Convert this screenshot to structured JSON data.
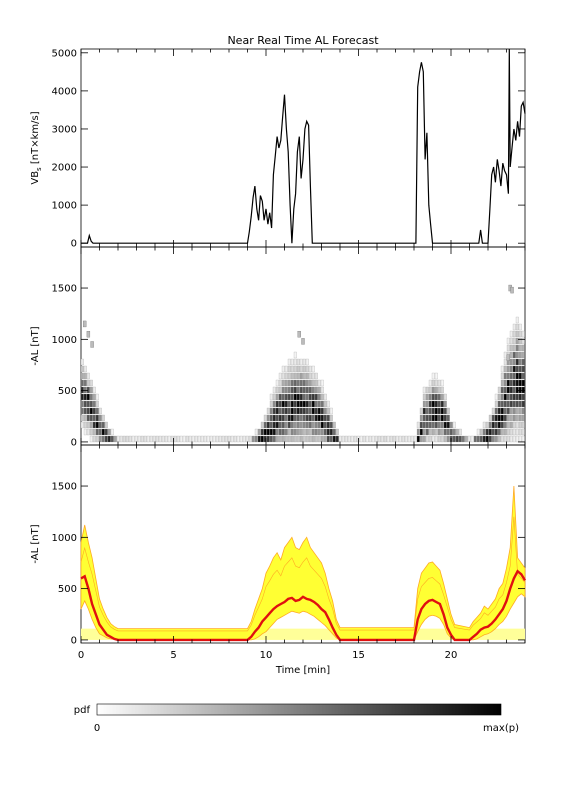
{
  "chart_data": [
    {
      "type": "line",
      "title": "Near Real Time AL Forecast",
      "ylabel_main": "VB",
      "ylabel_sub": "s",
      "ylabel_units": " [nT×km/s]",
      "ylim": [
        -100,
        5100
      ],
      "xlim": [
        0,
        24
      ],
      "yticks": [
        0,
        1000,
        2000,
        3000,
        4000,
        5000
      ],
      "x": [
        0,
        0.35,
        0.45,
        0.55,
        0.65,
        9.0,
        9.1,
        9.2,
        9.3,
        9.4,
        9.5,
        9.6,
        9.7,
        9.8,
        9.9,
        10.0,
        10.1,
        10.2,
        10.3,
        10.4,
        10.5,
        10.6,
        10.7,
        10.8,
        10.9,
        11.0,
        11.1,
        11.2,
        11.3,
        11.4,
        11.5,
        11.6,
        11.7,
        11.8,
        11.9,
        12.0,
        12.1,
        12.2,
        12.3,
        12.4,
        12.5,
        12.6,
        12.7,
        12.8,
        18.1,
        18.2,
        18.3,
        18.4,
        18.5,
        18.6,
        18.7,
        18.8,
        18.9,
        19.0,
        19.1,
        21.5,
        21.6,
        21.7,
        22.0,
        22.1,
        22.2,
        22.3,
        22.4,
        22.5,
        22.6,
        22.7,
        22.8,
        22.9,
        23.0,
        23.1,
        23.15,
        23.2,
        23.3,
        23.4,
        23.5,
        23.6,
        23.7,
        23.8,
        23.9,
        24.0
      ],
      "y": [
        0,
        0,
        200,
        50,
        0,
        0,
        300,
        700,
        1200,
        1500,
        900,
        600,
        1250,
        1100,
        600,
        900,
        500,
        800,
        400,
        1800,
        2300,
        2800,
        2500,
        2700,
        3300,
        3900,
        3000,
        2400,
        1000,
        0,
        900,
        1300,
        2400,
        2800,
        1700,
        2200,
        3000,
        3200,
        3100,
        1500,
        0,
        0,
        0,
        0,
        0,
        4100,
        4500,
        4750,
        4500,
        2200,
        2900,
        1000,
        500,
        0,
        0,
        0,
        350,
        0,
        0,
        900,
        1800,
        2000,
        1600,
        2200,
        1900,
        1500,
        2100,
        1900,
        1800,
        1300,
        5100,
        2000,
        2500,
        3000,
        2700,
        3200,
        2800,
        3600,
        3700,
        3400
      ]
    },
    {
      "type": "heatmap",
      "ylabel": "-AL [nT]",
      "ylim": [
        -30,
        1900
      ],
      "xlim": [
        0,
        24
      ],
      "yticks": [
        0,
        500,
        1000,
        1500
      ],
      "median_x": [
        0,
        0.5,
        1.0,
        1.5,
        2.0,
        9.0,
        9.5,
        10.0,
        10.5,
        11.0,
        11.5,
        12.0,
        12.5,
        13.0,
        13.5,
        14.0,
        18.0,
        18.5,
        19.0,
        19.5,
        20.0,
        21.0,
        21.5,
        22.0,
        22.5,
        23.0,
        23.5,
        24.0
      ],
      "median_y": [
        500,
        350,
        150,
        50,
        0,
        0,
        20,
        100,
        250,
        350,
        400,
        380,
        350,
        250,
        100,
        0,
        0,
        250,
        350,
        300,
        80,
        0,
        50,
        100,
        250,
        500,
        650,
        550
      ],
      "spread_y": [
        200,
        180,
        120,
        60,
        30,
        30,
        80,
        150,
        220,
        260,
        280,
        270,
        240,
        200,
        120,
        30,
        30,
        180,
        200,
        180,
        80,
        30,
        60,
        100,
        180,
        300,
        350,
        300
      ],
      "outliers": [
        [
          0.2,
          1150
        ],
        [
          0.4,
          1050
        ],
        [
          0.6,
          950
        ],
        [
          23.2,
          1500
        ],
        [
          23.3,
          1480
        ],
        [
          23.1,
          820
        ],
        [
          11.8,
          1050
        ],
        [
          12.0,
          980
        ]
      ],
      "colorbar": {
        "label": "pdf",
        "min_label": "0",
        "max_label": "max(p)"
      }
    },
    {
      "type": "area",
      "ylabel": "-AL [nT]",
      "xlabel": "Time [min]",
      "ylim": [
        -30,
        1900
      ],
      "xlim": [
        0,
        24
      ],
      "yticks": [
        0,
        500,
        1000,
        1500
      ],
      "xticks": [
        0,
        5,
        10,
        15,
        20
      ],
      "band_color": "#ffff33",
      "band_edge_color": "#ffaa22",
      "band_light_color": "#ffff99",
      "median_color": "#e01010",
      "x": [
        0,
        0.2,
        0.4,
        0.6,
        0.8,
        1.0,
        1.2,
        1.4,
        1.6,
        1.8,
        2.0,
        9.0,
        9.2,
        9.4,
        9.6,
        9.8,
        10.0,
        10.2,
        10.4,
        10.6,
        10.8,
        11.0,
        11.2,
        11.4,
        11.6,
        11.8,
        12.0,
        12.2,
        12.4,
        12.6,
        12.8,
        13.0,
        13.2,
        13.4,
        13.6,
        13.8,
        14.0,
        18.0,
        18.2,
        18.4,
        18.6,
        18.8,
        19.0,
        19.2,
        19.4,
        19.6,
        19.8,
        20.0,
        20.2,
        21.0,
        21.2,
        21.4,
        21.6,
        21.8,
        22.0,
        22.2,
        22.4,
        22.6,
        22.8,
        23.0,
        23.2,
        23.4,
        23.6,
        23.8,
        24.0
      ],
      "median": [
        600,
        620,
        500,
        350,
        250,
        150,
        100,
        50,
        30,
        10,
        0,
        0,
        30,
        80,
        120,
        180,
        220,
        260,
        300,
        330,
        350,
        370,
        400,
        410,
        380,
        390,
        420,
        400,
        390,
        370,
        340,
        300,
        270,
        200,
        120,
        50,
        0,
        0,
        200,
        300,
        350,
        380,
        390,
        370,
        350,
        250,
        120,
        50,
        0,
        0,
        30,
        60,
        100,
        120,
        130,
        160,
        200,
        250,
        300,
        380,
        500,
        600,
        670,
        640,
        580
      ],
      "upper": [
        950,
        1120,
        950,
        800,
        600,
        400,
        300,
        220,
        160,
        130,
        110,
        110,
        180,
        300,
        400,
        500,
        650,
        720,
        800,
        850,
        780,
        900,
        950,
        1000,
        900,
        880,
        950,
        1000,
        900,
        850,
        800,
        750,
        650,
        500,
        380,
        200,
        120,
        120,
        500,
        650,
        700,
        750,
        760,
        720,
        680,
        550,
        400,
        250,
        150,
        120,
        180,
        220,
        260,
        330,
        300,
        350,
        400,
        500,
        550,
        700,
        900,
        1500,
        800,
        750,
        700
      ],
      "lower": [
        300,
        380,
        300,
        200,
        120,
        60,
        40,
        20,
        10,
        5,
        0,
        0,
        0,
        10,
        30,
        60,
        80,
        120,
        160,
        200,
        220,
        240,
        260,
        280,
        270,
        260,
        280,
        270,
        250,
        230,
        200,
        170,
        140,
        100,
        60,
        20,
        0,
        0,
        80,
        150,
        200,
        230,
        240,
        230,
        210,
        150,
        60,
        20,
        0,
        0,
        0,
        10,
        30,
        50,
        60,
        80,
        110,
        150,
        180,
        230,
        300,
        360,
        420,
        450,
        420
      ]
    }
  ]
}
